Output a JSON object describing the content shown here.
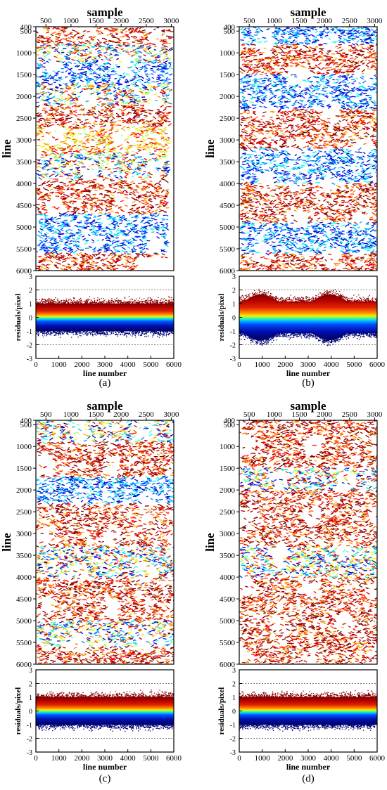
{
  "figure": {
    "panels": [
      {
        "label": "(a)",
        "seed": 11,
        "variant": "a"
      },
      {
        "label": "(b)",
        "seed": 23,
        "variant": "b"
      },
      {
        "label": "(c)",
        "seed": 37,
        "variant": "c"
      },
      {
        "label": "(d)",
        "seed": 53,
        "variant": "d"
      }
    ]
  },
  "chart_data": [
    {
      "panel": "(a)",
      "type": "scatter",
      "subplots": [
        {
          "role": "residual-map",
          "xlabel": "sample",
          "ylabel": "line",
          "x_ticks": [
            "500",
            "1000",
            "1500",
            "2000",
            "2500",
            "3000"
          ],
          "y_ticks": [
            "400",
            "500",
            "1000",
            "1500",
            "2000",
            "2500",
            "3000",
            "3500",
            "4000",
            "4500",
            "5000",
            "5500",
            "6000"
          ],
          "xlim": [
            300,
            3050
          ],
          "ylim": [
            6000,
            400
          ],
          "color_scale": "jet (blue = negative residual, red = positive residual)",
          "dominant_color_bands_by_line": [
            {
              "lines": [
                400,
                800
              ],
              "color": "red"
            },
            {
              "lines": [
                800,
                1200
              ],
              "color": "mixed"
            },
            {
              "lines": [
                1200,
                1700
              ],
              "color": "blue"
            },
            {
              "lines": [
                1700,
                2200
              ],
              "color": "mixed"
            },
            {
              "lines": [
                2200,
                2700
              ],
              "color": "red"
            },
            {
              "lines": [
                2700,
                3300
              ],
              "color": "orange"
            },
            {
              "lines": [
                3300,
                3900
              ],
              "color": "mixed"
            },
            {
              "lines": [
                3900,
                4700
              ],
              "color": "red"
            },
            {
              "lines": [
                4700,
                5600
              ],
              "color": "blue"
            },
            {
              "lines": [
                5600,
                6000
              ],
              "color": "red"
            }
          ]
        },
        {
          "role": "residual-profile",
          "xlabel": "line number",
          "ylabel": "residuals/pixel",
          "x_ticks": [
            "0",
            "1000",
            "2000",
            "3000",
            "4000",
            "5000",
            "6000"
          ],
          "y_ticks": [
            "3",
            "2",
            "1",
            "0",
            "-1",
            "-2",
            "-3"
          ],
          "xlim": [
            0,
            6000
          ],
          "ylim": [
            -3,
            3
          ],
          "reference_lines": [
            2,
            -2
          ],
          "residual_spread": {
            "upper": 1.3,
            "lower": -1.3,
            "periodic_amplitude": 0
          }
        }
      ]
    },
    {
      "panel": "(b)",
      "type": "scatter",
      "subplots": [
        {
          "role": "residual-map",
          "xlabel": "sample",
          "ylabel": "line",
          "x_ticks": [
            "500",
            "1000",
            "1500",
            "2000",
            "2500",
            "3000"
          ],
          "y_ticks": [
            "400",
            "500",
            "1000",
            "1500",
            "2000",
            "2500",
            "3000",
            "3500",
            "4000",
            "4500",
            "5000",
            "5500",
            "6000"
          ],
          "xlim": [
            300,
            3050
          ],
          "ylim": [
            6000,
            400
          ],
          "color_scale": "jet (blue = negative residual, red = positive residual)",
          "dominant_color_bands_by_line": [
            {
              "lines": [
                400,
                800
              ],
              "color": "blue"
            },
            {
              "lines": [
                800,
                1500
              ],
              "color": "red"
            },
            {
              "lines": [
                1500,
                2300
              ],
              "color": "blue"
            },
            {
              "lines": [
                2300,
                3200
              ],
              "color": "red"
            },
            {
              "lines": [
                3200,
                4000
              ],
              "color": "blue"
            },
            {
              "lines": [
                4000,
                4900
              ],
              "color": "red"
            },
            {
              "lines": [
                4900,
                5600
              ],
              "color": "blue"
            },
            {
              "lines": [
                5600,
                6000
              ],
              "color": "red"
            }
          ]
        },
        {
          "role": "residual-profile",
          "xlabel": "line number",
          "ylabel": "residuals/pixel",
          "x_ticks": [
            "0",
            "1000",
            "2000",
            "3000",
            "4000",
            "5000",
            "6000"
          ],
          "y_ticks": [
            "3",
            "2",
            "1",
            "0",
            "-1",
            "-2",
            "-3"
          ],
          "xlim": [
            0,
            6000
          ],
          "ylim": [
            -3,
            3
          ],
          "reference_lines": [
            2,
            -2
          ],
          "residual_spread": {
            "upper": 1.5,
            "lower": -1.5,
            "periodic_amplitude": 0.5
          }
        }
      ]
    },
    {
      "panel": "(c)",
      "type": "scatter",
      "subplots": [
        {
          "role": "residual-map",
          "xlabel": "sample",
          "ylabel": "line",
          "x_ticks": [
            "500",
            "1000",
            "1500",
            "2000",
            "2500",
            "3000"
          ],
          "y_ticks": [
            "400",
            "500",
            "1000",
            "1500",
            "2000",
            "2500",
            "3000",
            "3500",
            "4000",
            "4500",
            "5000",
            "5500",
            "6000"
          ],
          "xlim": [
            300,
            3050
          ],
          "ylim": [
            6000,
            400
          ],
          "color_scale": "jet (blue = negative residual, red = positive residual)",
          "dominant_color_bands_by_line": [
            {
              "lines": [
                400,
                900
              ],
              "color": "mixed"
            },
            {
              "lines": [
                900,
                1700
              ],
              "color": "red"
            },
            {
              "lines": [
                1700,
                2300
              ],
              "color": "blue"
            },
            {
              "lines": [
                2300,
                3300
              ],
              "color": "red"
            },
            {
              "lines": [
                3300,
                4000
              ],
              "color": "mixed"
            },
            {
              "lines": [
                4000,
                5000
              ],
              "color": "red"
            },
            {
              "lines": [
                5000,
                5600
              ],
              "color": "mixed"
            },
            {
              "lines": [
                5600,
                6000
              ],
              "color": "red"
            }
          ]
        },
        {
          "role": "residual-profile",
          "xlabel": "line number",
          "ylabel": "residuals/pixel",
          "x_ticks": [
            "0",
            "1000",
            "2000",
            "3000",
            "4000",
            "5000",
            "6000"
          ],
          "y_ticks": [
            "3",
            "2",
            "1",
            "0",
            "-1",
            "-2",
            "-3"
          ],
          "xlim": [
            0,
            6000
          ],
          "ylim": [
            -3,
            3
          ],
          "reference_lines": [
            2,
            -2
          ],
          "residual_spread": {
            "upper": 1.3,
            "lower": -1.3,
            "periodic_amplitude": 0
          }
        }
      ]
    },
    {
      "panel": "(d)",
      "type": "scatter",
      "subplots": [
        {
          "role": "residual-map",
          "xlabel": "sample",
          "ylabel": "line",
          "x_ticks": [
            "500",
            "1000",
            "1500",
            "2000",
            "2500",
            "3000"
          ],
          "y_ticks": [
            "400",
            "500",
            "1000",
            "1500",
            "2000",
            "2500",
            "3000",
            "3500",
            "4000",
            "4500",
            "5000",
            "5500",
            "6000"
          ],
          "xlim": [
            300,
            3050
          ],
          "ylim": [
            6000,
            400
          ],
          "color_scale": "jet (blue = negative residual, red = positive residual)",
          "dominant_color_bands_by_line": [
            {
              "lines": [
                400,
                1500
              ],
              "color": "red"
            },
            {
              "lines": [
                1500,
                2000
              ],
              "color": "mixed"
            },
            {
              "lines": [
                2000,
                3300
              ],
              "color": "red"
            },
            {
              "lines": [
                3300,
                4000
              ],
              "color": "mixed"
            },
            {
              "lines": [
                4000,
                6000
              ],
              "color": "red"
            }
          ]
        },
        {
          "role": "residual-profile",
          "xlabel": "line number",
          "ylabel": "residuals/pixel",
          "x_ticks": [
            "0",
            "1000",
            "2000",
            "3000",
            "4000",
            "5000",
            "6000"
          ],
          "y_ticks": [
            "3",
            "2",
            "1",
            "0",
            "-1",
            "-2",
            "-3"
          ],
          "xlim": [
            0,
            6000
          ],
          "ylim": [
            -3,
            3
          ],
          "reference_lines": [
            2,
            -2
          ],
          "residual_spread": {
            "upper": 1.3,
            "lower": -1.3,
            "periodic_amplitude": 0
          }
        }
      ]
    }
  ]
}
